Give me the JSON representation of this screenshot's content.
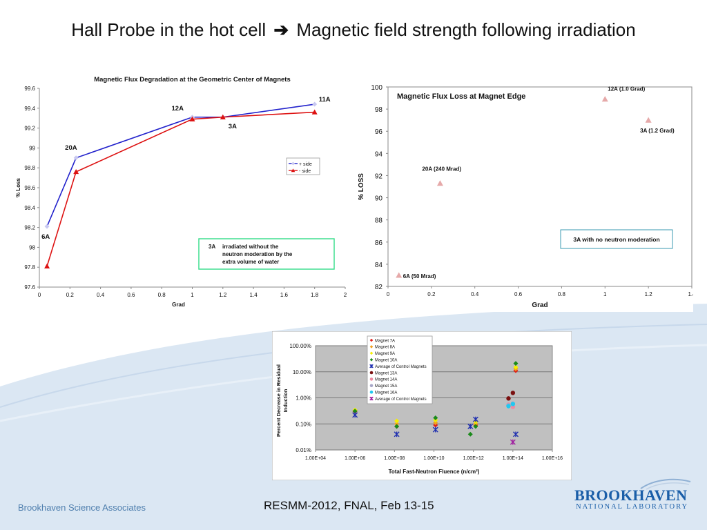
{
  "slide": {
    "title_left": "Hall Probe in the hot cell",
    "title_arrow": "➔",
    "title_right": "Magnetic field strength following irradiation",
    "footer_left": "Brookhaven Science Associates",
    "footer_center": "RESMM-2012, FNAL, Feb 13-15",
    "logo_big": "BROOKHAVEN",
    "logo_small": "NATIONAL LABORATORY",
    "colors": {
      "accent": "#1a5ea8",
      "footer_text": "#4f7fae",
      "wave": "#dbe7f3"
    }
  },
  "chart_data": [
    {
      "type": "line",
      "title": "Magnetic Flux Degradation at the Geometric Center of Magnets",
      "xlabel": "Grad",
      "ylabel": "% Loss",
      "xlim": [
        0,
        2
      ],
      "ylim": [
        97.6,
        99.6
      ],
      "xticks": [
        "0",
        "0.2",
        "0.4",
        "0.6",
        "0.8",
        "1",
        "1.2",
        "1.4",
        "1.6",
        "1.8",
        "2"
      ],
      "yticks": [
        "97.6",
        "97.8",
        "98",
        "98.2",
        "98.4",
        "98.6",
        "98.8",
        "99",
        "99.2",
        "99.4",
        "99.6"
      ],
      "x": [
        0.05,
        0.24,
        1.0,
        1.2,
        1.8
      ],
      "series": [
        {
          "name": "+ side",
          "color": "#2222cc",
          "values": [
            98.21,
            98.9,
            99.31,
            99.31,
            99.44
          ]
        },
        {
          "name": "- side",
          "color": "#dd1111",
          "values": [
            97.81,
            98.76,
            99.29,
            99.31,
            99.36
          ]
        }
      ],
      "point_labels": [
        {
          "text": "6A",
          "x": 0.05,
          "y": 98.21
        },
        {
          "text": "20A",
          "x": 0.24,
          "y": 98.9
        },
        {
          "text": "12A",
          "x": 1.0,
          "y": 99.31
        },
        {
          "text": "3A",
          "x": 1.2,
          "y": 99.31
        },
        {
          "text": "11A",
          "x": 1.8,
          "y": 99.44
        }
      ],
      "legend_position": "right",
      "note_key": "3A",
      "note": "irradiated without the neutron moderation by the extra volume of water"
    },
    {
      "type": "scatter",
      "title": "Magnetic Flux Loss at Magnet Edge",
      "xlabel": "Grad",
      "ylabel": "% LOSS",
      "xlim": [
        0,
        1.4
      ],
      "ylim": [
        82,
        100
      ],
      "xticks": [
        "0",
        "0.2",
        "0.4",
        "0.6",
        "0.8",
        "1",
        "1.2",
        "1.4"
      ],
      "yticks": [
        "82",
        "84",
        "86",
        "88",
        "90",
        "92",
        "94",
        "96",
        "98",
        "100"
      ],
      "points": [
        {
          "label": "6A (50 Mrad)",
          "x": 0.05,
          "y": 83.0
        },
        {
          "label": "20A (240 Mrad)",
          "x": 0.24,
          "y": 91.3
        },
        {
          "label": "12A (1.0 Grad)",
          "x": 1.0,
          "y": 98.9
        },
        {
          "label": "3A (1.2 Grad)",
          "x": 1.2,
          "y": 97.0
        }
      ],
      "marker_color": "#e6a9a9",
      "note": "3A with no neutron moderation"
    },
    {
      "type": "scatter",
      "xlabel": "Total Fast-Neutron Fluence (n/cm²)",
      "ylabel": "Percent Decrease in Residual Induction",
      "log_x": true,
      "log_y": true,
      "xlim": [
        10000.0,
        1e+16
      ],
      "ylim": [
        0.01,
        100
      ],
      "xticks": [
        "1.00E+04",
        "1.00E+06",
        "1.00E+08",
        "1.00E+10",
        "1.00E+12",
        "1.00E+14",
        "1.00E+16"
      ],
      "yticks": [
        "0.01%",
        "0.10%",
        "1.00%",
        "10.00%",
        "100.00%"
      ],
      "background": "#c0c0c0",
      "series": [
        {
          "name": "Magnet 7A",
          "marker": "diamond",
          "color": "#e0201a",
          "points": [
            [
              1000000.0,
              0.3
            ],
            [
              130000000.0,
              0.08
            ],
            [
              12000000000.0,
              0.09
            ],
            [
              1300000000000.0,
              0.09
            ],
            [
              140000000000000.0,
              11.0
            ]
          ]
        },
        {
          "name": "Magnet 8A",
          "marker": "diamond",
          "color": "#f0a020",
          "points": [
            [
              1000000.0,
              0.32
            ],
            [
              130000000.0,
              0.1
            ],
            [
              12000000000.0,
              0.11
            ],
            [
              1300000000000.0,
              0.1
            ],
            [
              140000000000000.0,
              13.0
            ]
          ]
        },
        {
          "name": "Magnet 9A",
          "marker": "diamond",
          "color": "#f5f000",
          "points": [
            [
              1000000.0,
              0.34
            ],
            [
              130000000.0,
              0.13
            ],
            [
              12000000000.0,
              0.14
            ],
            [
              1300000000000.0,
              0.12
            ],
            [
              140000000000000.0,
              15.0
            ]
          ]
        },
        {
          "name": "Magnet 10A",
          "marker": "diamond",
          "color": "#1a8a1a",
          "points": [
            [
              1000000.0,
              0.31
            ],
            [
              130000000.0,
              0.08
            ],
            [
              12000000000.0,
              0.17
            ],
            [
              700000000000.0,
              0.04
            ],
            [
              1300000000000.0,
              0.08
            ],
            [
              140000000000000.0,
              21.0
            ]
          ]
        },
        {
          "name": "Average of Control Magnets",
          "marker": "x",
          "color": "#2030b0",
          "points": [
            [
              1000000.0,
              0.22
            ],
            [
              130000000.0,
              0.04
            ],
            [
              12000000000.0,
              0.06
            ],
            [
              700000000000.0,
              0.08
            ],
            [
              1300000000000.0,
              0.15
            ],
            [
              140000000000000.0,
              0.04
            ]
          ]
        },
        {
          "name": "Magnet 13A",
          "marker": "circle",
          "color": "#7a1010",
          "points": [
            [
              60000000000000.0,
              0.95
            ],
            [
              100000000000000.0,
              1.55
            ]
          ]
        },
        {
          "name": "Magnet 14A",
          "marker": "circle",
          "color": "#f08aa0",
          "points": [
            [
              60000000000000.0,
              0.55
            ],
            [
              100000000000000.0,
              0.45
            ]
          ]
        },
        {
          "name": "Magnet 15A",
          "marker": "circle",
          "color": "#a8a8c8",
          "points": [
            [
              60000000000000.0,
              0.52
            ],
            [
              100000000000000.0,
              0.6
            ]
          ]
        },
        {
          "name": "Magnet 16A",
          "marker": "circle",
          "color": "#20c8f0",
          "points": [
            [
              60000000000000.0,
              0.48
            ],
            [
              100000000000000.0,
              0.58
            ]
          ]
        },
        {
          "name": "Average of Control Magnets",
          "marker": "x",
          "color": "#a020a0",
          "points": [
            [
              100000000000000.0,
              0.02
            ]
          ]
        }
      ],
      "legend_position": "top-left"
    }
  ]
}
